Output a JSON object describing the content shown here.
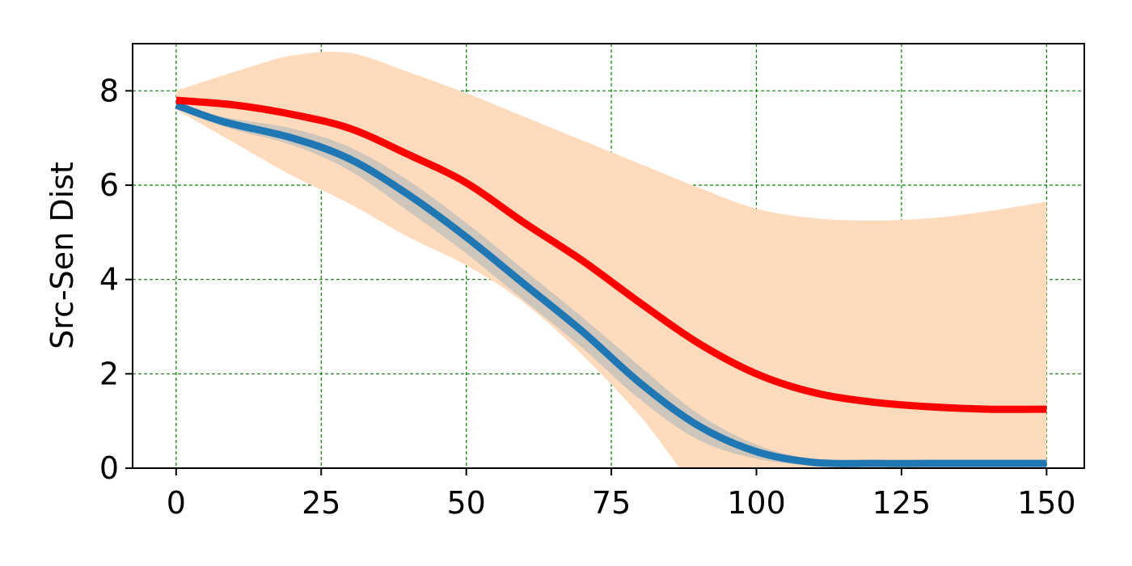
{
  "chart_data": {
    "type": "line",
    "title": "",
    "xlabel": "",
    "ylabel": "Src-Sen Dist",
    "xlim": [
      -7.5,
      156.5
    ],
    "ylim": [
      0,
      9
    ],
    "x_ticks": [
      0,
      25,
      50,
      75,
      100,
      125,
      150
    ],
    "y_ticks": [
      0,
      2,
      4,
      6,
      8
    ],
    "grid": true,
    "grid_style": "dashed",
    "colors": {
      "blue_line": "#1f77b4",
      "blue_band": "#1f77b4",
      "red_line": "#ff0000",
      "orange_band": "#ffdbbd",
      "grid": "#008000"
    },
    "series": [
      {
        "color": "#1f77b4",
        "x": [
          0,
          8,
          20,
          30,
          40,
          50,
          60,
          70,
          80,
          90,
          100,
          110,
          120,
          130,
          140,
          150
        ],
        "values": [
          7.7,
          7.35,
          7.0,
          6.55,
          5.8,
          4.9,
          3.9,
          2.9,
          1.8,
          0.9,
          0.35,
          0.12,
          0.1,
          0.1,
          0.1,
          0.1
        ],
        "band_low": [
          7.7,
          7.25,
          6.85,
          6.3,
          5.45,
          4.55,
          3.55,
          2.55,
          1.45,
          0.6,
          0.2,
          0.06,
          0.05,
          0.05,
          0.05,
          0.05
        ],
        "band_high": [
          7.75,
          7.45,
          7.2,
          6.8,
          6.1,
          5.2,
          4.2,
          3.2,
          2.15,
          1.15,
          0.5,
          0.18,
          0.15,
          0.15,
          0.15,
          0.15
        ]
      },
      {
        "color": "#ff0000",
        "x": [
          0,
          10,
          20,
          30,
          40,
          50,
          60,
          70,
          80,
          90,
          100,
          110,
          120,
          130,
          140,
          150
        ],
        "values": [
          7.8,
          7.7,
          7.5,
          7.2,
          6.65,
          6.05,
          5.2,
          4.4,
          3.5,
          2.65,
          2.0,
          1.6,
          1.4,
          1.3,
          1.25,
          1.25
        ],
        "band_low": [
          7.6,
          6.9,
          6.2,
          5.6,
          4.9,
          4.3,
          3.5,
          2.4,
          1.1,
          -0.4,
          -0.8,
          -0.8,
          -0.8,
          -0.8,
          -0.8,
          -0.8
        ],
        "band_high": [
          8.0,
          8.4,
          8.75,
          8.8,
          8.4,
          7.95,
          7.45,
          6.95,
          6.45,
          5.95,
          5.5,
          5.3,
          5.25,
          5.3,
          5.45,
          5.65
        ]
      }
    ]
  }
}
